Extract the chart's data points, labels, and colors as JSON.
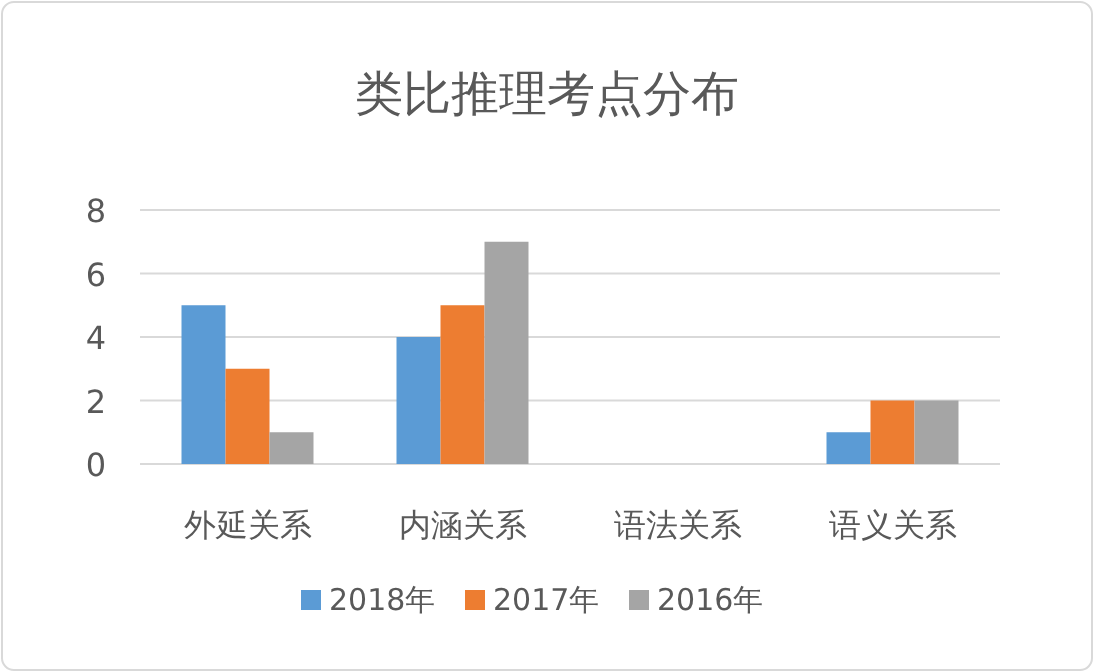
{
  "chart_data": {
    "type": "bar",
    "title": "类比推理考点分布",
    "categories": [
      "外延关系",
      "内涵关系",
      "语法关系",
      "语义关系"
    ],
    "series": [
      {
        "name": "2018年",
        "color": "#5b9bd5",
        "values": [
          5,
          4,
          0,
          1
        ]
      },
      {
        "name": "2017年",
        "color": "#ed7d31",
        "values": [
          3,
          5,
          0,
          2
        ]
      },
      {
        "name": "2016年",
        "color": "#a5a5a5",
        "values": [
          1,
          7,
          0,
          2
        ]
      }
    ],
    "ylim": [
      0,
      8
    ],
    "yticks": [
      0,
      2,
      4,
      6,
      8
    ],
    "grid": "y",
    "legend": "bottom"
  }
}
